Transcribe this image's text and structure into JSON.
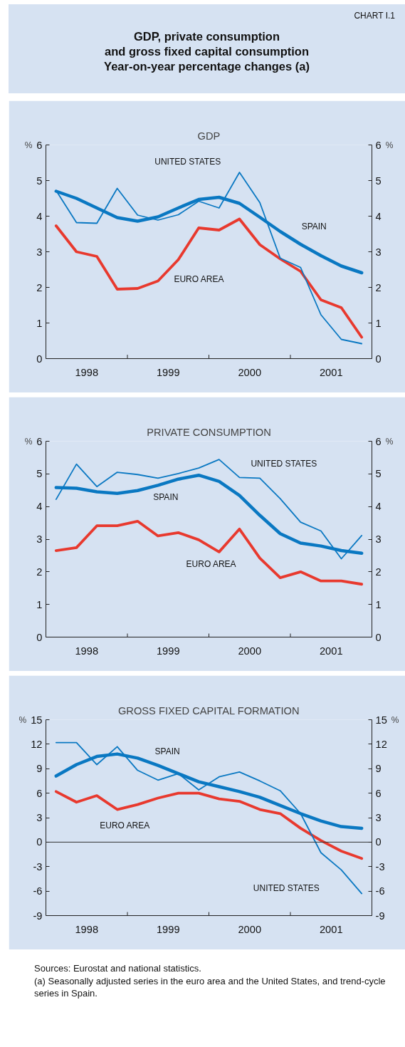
{
  "chart_data": [
    {
      "type": "other",
      "title": "GDP, private consumption\nand gross fixed capital consumption\nYear-on-year percentage changes (a)",
      "annotations": [
        "CHART I.1"
      ]
    },
    {
      "type": "line",
      "title": "GDP",
      "ylabel": "%",
      "y2label": "%",
      "grid": false,
      "line_style": "solid",
      "marker": "none",
      "x": [
        1998.125,
        1998.375,
        1998.625,
        1998.875,
        1999.125,
        1999.375,
        1999.625,
        1999.875,
        2000.125,
        2000.375,
        2000.625,
        2000.875,
        2001.125,
        2001.375,
        2001.625,
        2001.875
      ],
      "xlim": [
        1998,
        2002
      ],
      "xticks": [
        {
          "value": 1998.5,
          "label": "1998"
        },
        {
          "value": 1999,
          "label": null
        },
        {
          "value": 1999.5,
          "label": "1999"
        },
        {
          "value": 2000,
          "label": null
        },
        {
          "value": 2000.5,
          "label": "2000"
        },
        {
          "value": 2001,
          "label": null
        },
        {
          "value": 2001.5,
          "label": "2001"
        }
      ],
      "ylim": [
        0,
        6
      ],
      "yticks": [
        0,
        1,
        2,
        3,
        4,
        5,
        6
      ],
      "y2lim": [
        0,
        6
      ],
      "y2ticks": [
        0,
        1,
        2,
        3,
        4,
        5,
        6
      ],
      "series": [
        {
          "name": "SPAIN",
          "color": "#0a78c2",
          "values": [
            4.7,
            4.5,
            4.23,
            3.96,
            3.86,
            3.98,
            4.23,
            4.47,
            4.53,
            4.36,
            3.97,
            3.57,
            3.21,
            2.89,
            2.6,
            2.41
          ]
        },
        {
          "name": "EURO AREA",
          "color": "#e8392e",
          "values": [
            3.73,
            3.0,
            2.87,
            1.95,
            1.97,
            2.18,
            2.78,
            3.67,
            3.61,
            3.92,
            3.2,
            2.8,
            2.45,
            1.65,
            1.43,
            0.6
          ]
        },
        {
          "name": "UNITED STATES",
          "color": "#0a78c2",
          "values": [
            4.72,
            3.82,
            3.8,
            4.78,
            4.03,
            3.89,
            4.04,
            4.42,
            4.23,
            5.23,
            4.38,
            2.82,
            2.56,
            1.23,
            0.54,
            0.42
          ]
        }
      ]
    },
    {
      "type": "line",
      "title": "PRIVATE CONSUMPTION",
      "ylabel": "%",
      "y2label": "%",
      "grid": false,
      "line_style": "solid",
      "marker": "none",
      "x": [
        1998.125,
        1998.375,
        1998.625,
        1998.875,
        1999.125,
        1999.375,
        1999.625,
        1999.875,
        2000.125,
        2000.375,
        2000.625,
        2000.875,
        2001.125,
        2001.375,
        2001.625,
        2001.875
      ],
      "xlim": [
        1998,
        2002
      ],
      "xticks": [
        {
          "value": 1998.5,
          "label": "1998"
        },
        {
          "value": 1999,
          "label": null
        },
        {
          "value": 1999.5,
          "label": "1999"
        },
        {
          "value": 2000,
          "label": null
        },
        {
          "value": 2000.5,
          "label": "2000"
        },
        {
          "value": 2001,
          "label": null
        },
        {
          "value": 2001.5,
          "label": "2001"
        }
      ],
      "ylim": [
        0,
        6
      ],
      "yticks": [
        0,
        1,
        2,
        3,
        4,
        5,
        6
      ],
      "y2lim": [
        0,
        6
      ],
      "y2ticks": [
        0,
        1,
        2,
        3,
        4,
        5,
        6
      ],
      "series": [
        {
          "name": "SPAIN",
          "color": "#0a78c2",
          "values": [
            4.58,
            4.56,
            4.45,
            4.4,
            4.49,
            4.65,
            4.84,
            4.96,
            4.77,
            4.34,
            3.73,
            3.17,
            2.88,
            2.79,
            2.65,
            2.57
          ]
        },
        {
          "name": "EURO AREA",
          "color": "#e8392e",
          "values": [
            2.65,
            2.74,
            3.41,
            3.41,
            3.55,
            3.1,
            3.2,
            2.98,
            2.61,
            3.31,
            2.42,
            1.82,
            2.0,
            1.72,
            1.72,
            1.62
          ]
        },
        {
          "name": "UNITED STATES",
          "color": "#0a78c2",
          "values": [
            4.22,
            5.3,
            4.61,
            5.05,
            4.98,
            4.87,
            5.01,
            5.18,
            5.44,
            4.89,
            4.87,
            4.24,
            3.52,
            3.25,
            2.4,
            3.11
          ]
        }
      ]
    },
    {
      "type": "line",
      "title": "GROSS FIXED CAPITAL FORMATION",
      "ylabel": "%",
      "y2label": "%",
      "grid": false,
      "line_style": "solid",
      "marker": "none",
      "x": [
        1998.125,
        1998.375,
        1998.625,
        1998.875,
        1999.125,
        1999.375,
        1999.625,
        1999.875,
        2000.125,
        2000.375,
        2000.625,
        2000.875,
        2001.125,
        2001.375,
        2001.625,
        2001.875
      ],
      "xlim": [
        1998,
        2002
      ],
      "xticks": [
        {
          "value": 1998.5,
          "label": "1998"
        },
        {
          "value": 1999,
          "label": null
        },
        {
          "value": 1999.5,
          "label": "1999"
        },
        {
          "value": 2000,
          "label": null
        },
        {
          "value": 2000.5,
          "label": "2000"
        },
        {
          "value": 2001,
          "label": null
        },
        {
          "value": 2001.5,
          "label": "2001"
        }
      ],
      "ylim": [
        -9,
        15
      ],
      "yticks": [
        -9,
        -6,
        -3,
        0,
        3,
        6,
        9,
        12,
        15
      ],
      "y2lim": [
        -9,
        15
      ],
      "y2ticks": [
        -9,
        -6,
        -3,
        0,
        3,
        6,
        9,
        12,
        15
      ],
      "ref_lines": [
        {
          "axis": "y",
          "value": 0,
          "color": "#333333"
        }
      ],
      "series": [
        {
          "name": "SPAIN",
          "color": "#0a78c2",
          "values": [
            8.1,
            9.5,
            10.5,
            10.8,
            10.3,
            9.4,
            8.4,
            7.4,
            6.8,
            6.2,
            5.5,
            4.5,
            3.5,
            2.6,
            1.9,
            1.7
          ]
        },
        {
          "name": "EURO AREA",
          "color": "#e8392e",
          "values": [
            6.2,
            4.9,
            5.7,
            4.0,
            4.6,
            5.4,
            6.0,
            6.0,
            5.3,
            5.0,
            4.0,
            3.5,
            1.7,
            0.2,
            -1.1,
            -2.0
          ]
        },
        {
          "name": "UNITED STATES",
          "color": "#0a78c2",
          "values": [
            12.2,
            12.2,
            9.5,
            11.7,
            8.8,
            7.6,
            8.4,
            6.4,
            8.0,
            8.6,
            7.5,
            6.3,
            3.5,
            -1.3,
            -3.4,
            -6.3
          ]
        }
      ],
      "annotations": [
        "Sources: Eurostat and national statistics.",
        "(a)   Seasonally adjusted series in the euro area and the United States, and trend-cycle series in Spain."
      ]
    }
  ]
}
